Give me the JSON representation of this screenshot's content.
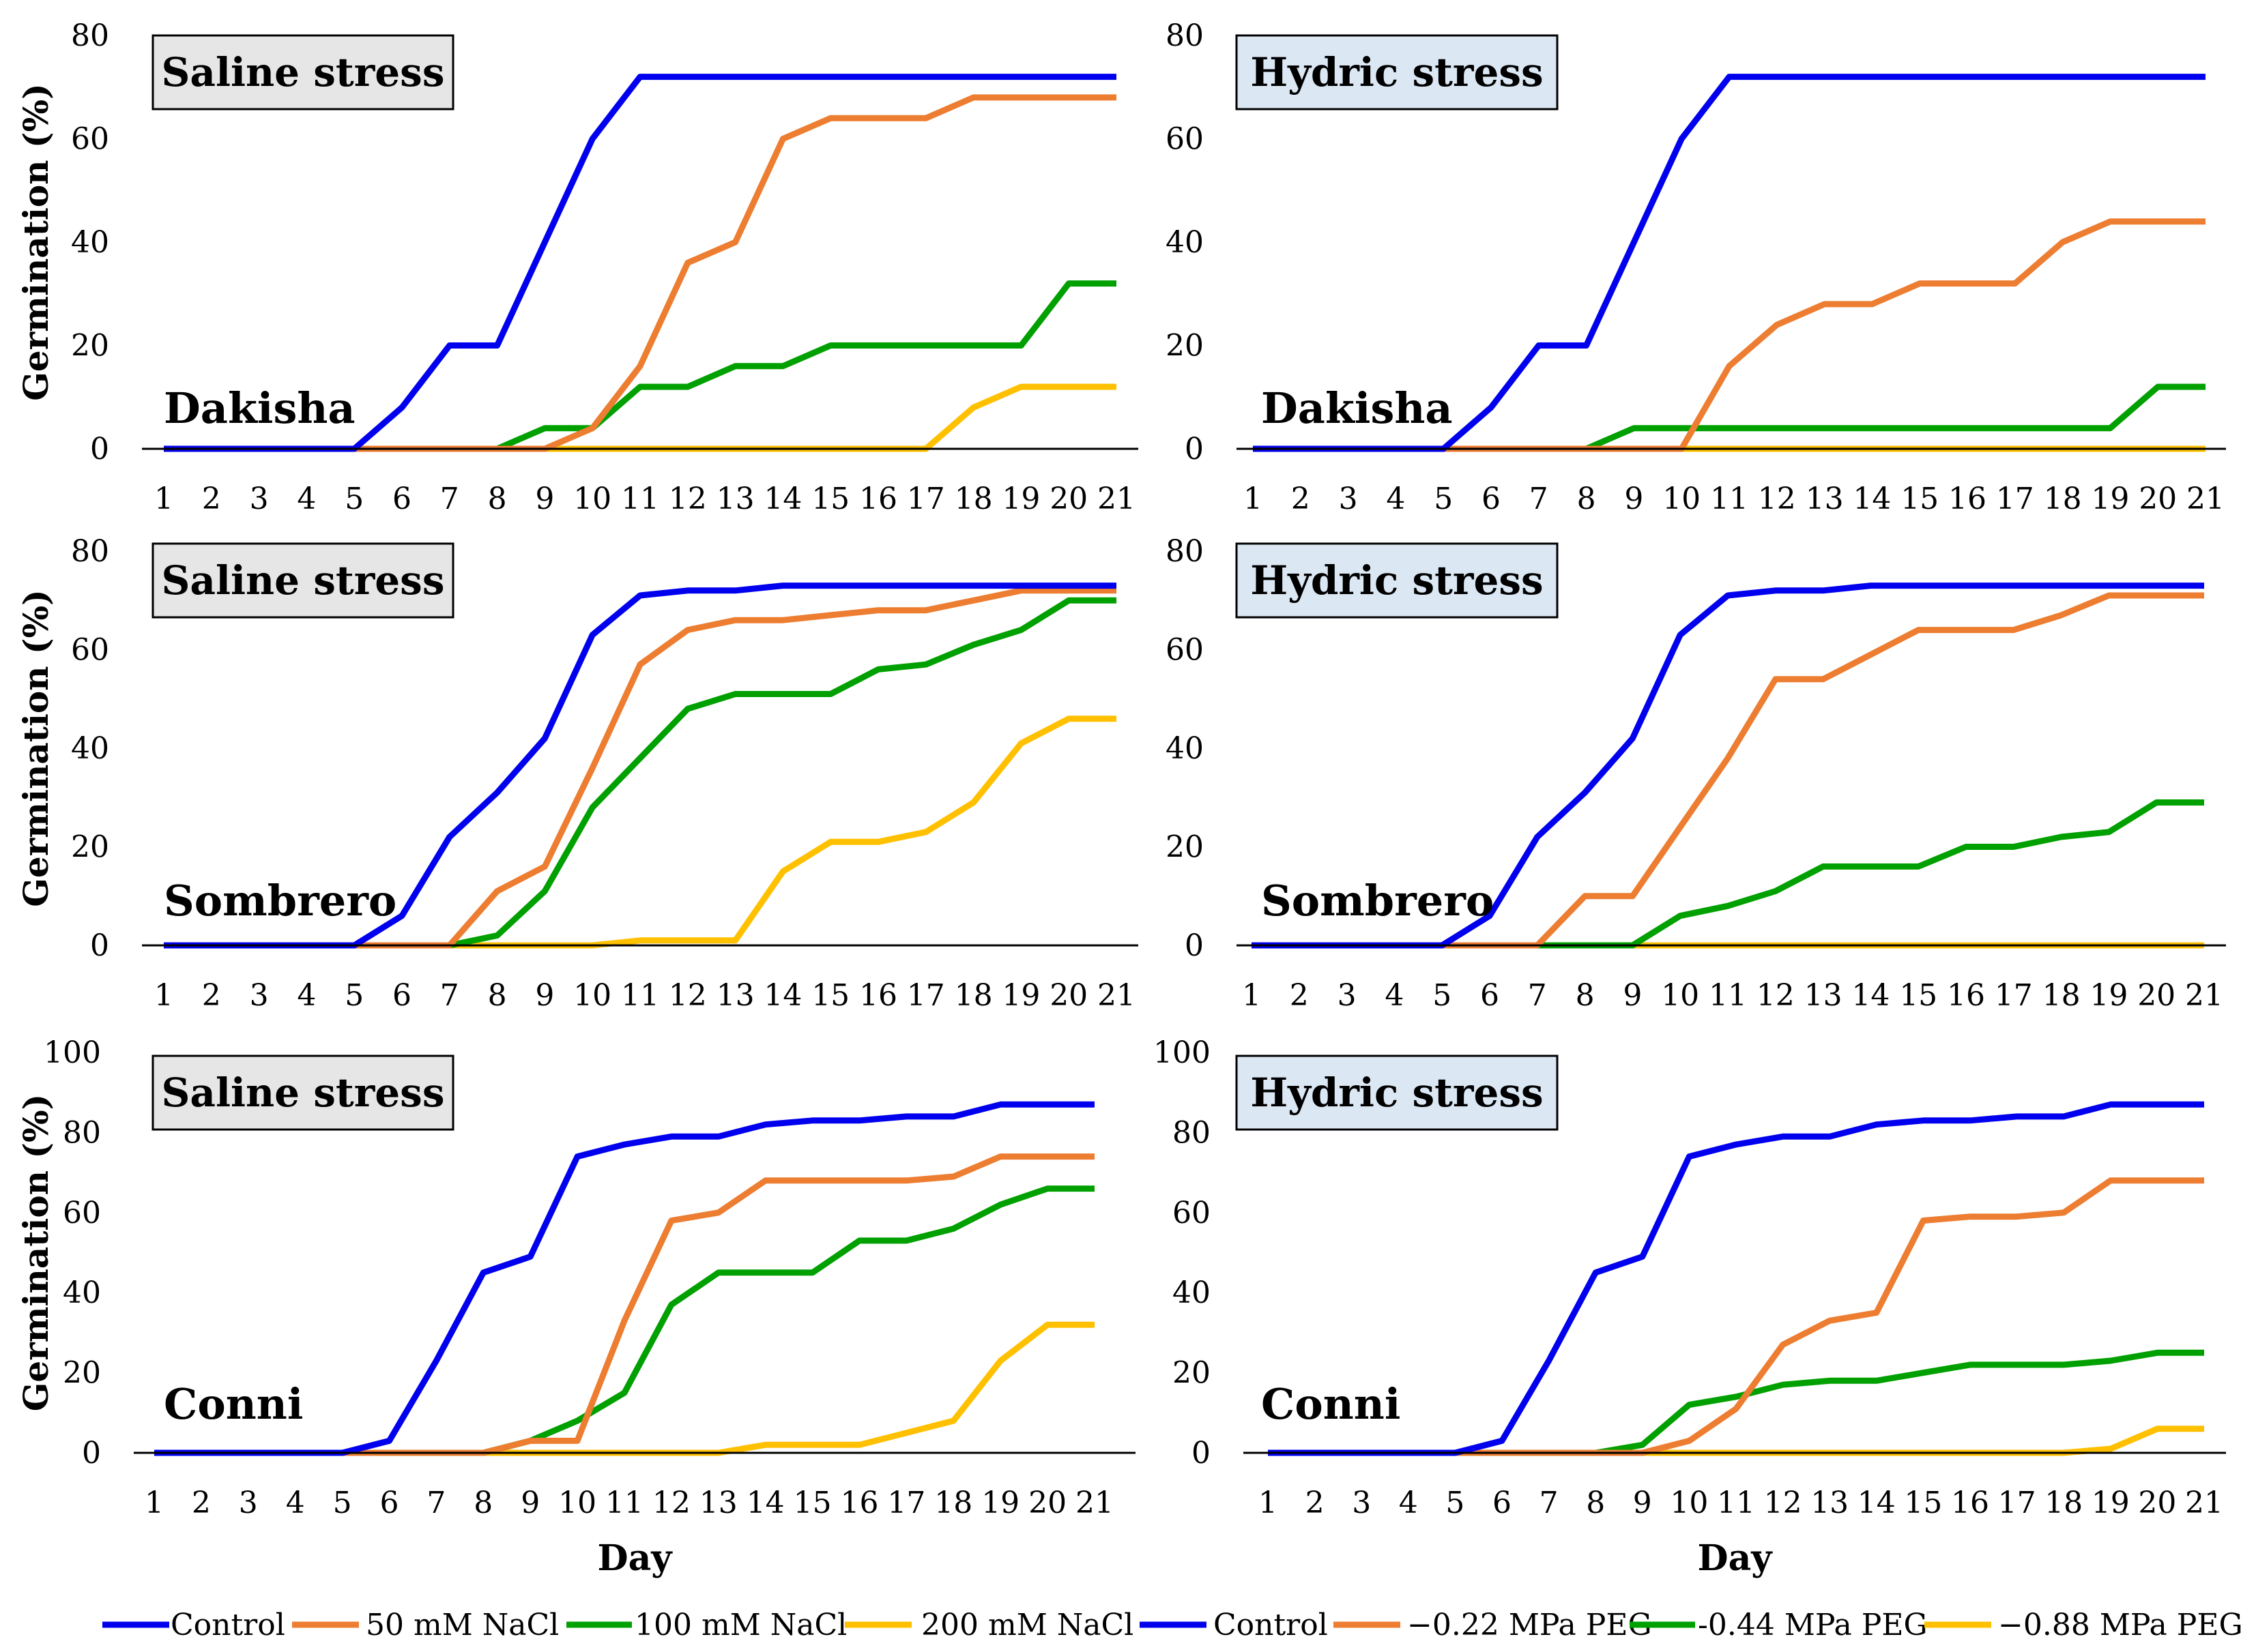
{
  "chart_data": [
    {
      "type": "line",
      "panel": "top-left",
      "title": "Saline stress",
      "cultivar": "Dakisha",
      "xlabel": "",
      "ylabel": "Germination (%)",
      "ylim": [
        0,
        80
      ],
      "yticks": [
        "0",
        "20",
        "40",
        "60",
        "80"
      ],
      "x": [
        "1",
        "2",
        "3",
        "4",
        "5",
        "6",
        "7",
        "8",
        "9",
        "10",
        "11",
        "12",
        "13",
        "14",
        "15",
        "16",
        "17",
        "18",
        "19",
        "20",
        "21"
      ],
      "series": [
        {
          "name": "Control",
          "color": "#0000ee",
          "values": [
            0,
            0,
            0,
            0,
            0,
            8,
            20,
            20,
            40,
            60,
            72,
            72,
            72,
            72,
            72,
            72,
            72,
            72,
            72,
            72,
            72
          ]
        },
        {
          "name": "50 mM NaCl",
          "color": "#ed7d31",
          "values": [
            0,
            0,
            0,
            0,
            0,
            0,
            0,
            0,
            0,
            4,
            16,
            36,
            40,
            60,
            64,
            64,
            64,
            68,
            68,
            68,
            68
          ]
        },
        {
          "name": "100 mM NaCl",
          "color": "#00a000",
          "values": [
            0,
            0,
            0,
            0,
            0,
            0,
            0,
            0,
            4,
            4,
            12,
            12,
            16,
            16,
            20,
            20,
            20,
            20,
            20,
            32,
            32
          ]
        },
        {
          "name": "200 mM NaCl",
          "color": "#ffc000",
          "values": [
            0,
            0,
            0,
            0,
            0,
            0,
            0,
            0,
            0,
            0,
            0,
            0,
            0,
            0,
            0,
            0,
            0,
            8,
            12,
            12,
            12
          ]
        }
      ]
    },
    {
      "type": "line",
      "panel": "top-right",
      "title": "Hydric stress",
      "cultivar": "Dakisha",
      "xlabel": "",
      "ylabel": "",
      "ylim": [
        0,
        80
      ],
      "yticks": [
        "0",
        "20",
        "40",
        "60",
        "80"
      ],
      "x": [
        "1",
        "2",
        "3",
        "4",
        "5",
        "6",
        "7",
        "8",
        "9",
        "10",
        "11",
        "12",
        "13",
        "14",
        "15",
        "16",
        "17",
        "18",
        "19",
        "20",
        "21"
      ],
      "series": [
        {
          "name": "Control",
          "color": "#0000ee",
          "values": [
            0,
            0,
            0,
            0,
            0,
            8,
            20,
            20,
            40,
            60,
            72,
            72,
            72,
            72,
            72,
            72,
            72,
            72,
            72,
            72,
            72
          ]
        },
        {
          "name": "−0.22 MPa PEG",
          "color": "#ed7d31",
          "values": [
            0,
            0,
            0,
            0,
            0,
            0,
            0,
            0,
            0,
            0,
            16,
            24,
            28,
            28,
            32,
            32,
            32,
            40,
            44,
            44,
            44
          ]
        },
        {
          "name": "-0.44 MPa PEG",
          "color": "#00a000",
          "values": [
            0,
            0,
            0,
            0,
            0,
            0,
            0,
            0,
            4,
            4,
            4,
            4,
            4,
            4,
            4,
            4,
            4,
            4,
            4,
            12,
            12
          ]
        },
        {
          "name": "−0.88 MPa PEG",
          "color": "#ffc000",
          "values": [
            0,
            0,
            0,
            0,
            0,
            0,
            0,
            0,
            0,
            0,
            0,
            0,
            0,
            0,
            0,
            0,
            0,
            0,
            0,
            0,
            0
          ]
        }
      ]
    },
    {
      "type": "line",
      "panel": "middle-left",
      "title": "Saline stress",
      "cultivar": "Sombrero",
      "xlabel": "",
      "ylabel": "Germination (%)",
      "ylim": [
        0,
        80
      ],
      "yticks": [
        "0",
        "20",
        "40",
        "60",
        "80"
      ],
      "x": [
        "1",
        "2",
        "3",
        "4",
        "5",
        "6",
        "7",
        "8",
        "9",
        "10",
        "11",
        "12",
        "13",
        "14",
        "15",
        "16",
        "17",
        "18",
        "19",
        "20",
        "21"
      ],
      "series": [
        {
          "name": "Control",
          "color": "#0000ee",
          "values": [
            0,
            0,
            0,
            0,
            0,
            6,
            22,
            31,
            42,
            63,
            71,
            72,
            72,
            73,
            73,
            73,
            73,
            73,
            73,
            73,
            73
          ]
        },
        {
          "name": "50 mM NaCl",
          "color": "#ed7d31",
          "values": [
            0,
            0,
            0,
            0,
            0,
            0,
            0,
            11,
            16,
            36,
            57,
            64,
            66,
            66,
            67,
            68,
            68,
            70,
            72,
            72,
            72
          ]
        },
        {
          "name": "100 mM NaCl",
          "color": "#00a000",
          "values": [
            0,
            0,
            0,
            0,
            0,
            0,
            0,
            2,
            11,
            28,
            38,
            48,
            51,
            51,
            51,
            56,
            57,
            61,
            64,
            70,
            70
          ]
        },
        {
          "name": "200 mM NaCl",
          "color": "#ffc000",
          "values": [
            0,
            0,
            0,
            0,
            0,
            0,
            0,
            0,
            0,
            0,
            1,
            1,
            1,
            15,
            21,
            21,
            23,
            29,
            41,
            46,
            46
          ]
        }
      ]
    },
    {
      "type": "line",
      "panel": "middle-right",
      "title": "Hydric stress",
      "cultivar": "Sombrero",
      "xlabel": "",
      "ylabel": "",
      "ylim": [
        0,
        80
      ],
      "yticks": [
        "0",
        "20",
        "40",
        "60",
        "80"
      ],
      "x": [
        "1",
        "2",
        "3",
        "4",
        "5",
        "6",
        "7",
        "8",
        "9",
        "10",
        "11",
        "12",
        "13",
        "14",
        "15",
        "16",
        "17",
        "18",
        "19",
        "20",
        "21"
      ],
      "series": [
        {
          "name": "Control",
          "color": "#0000ee",
          "values": [
            0,
            0,
            0,
            0,
            0,
            6,
            22,
            31,
            42,
            63,
            71,
            72,
            72,
            73,
            73,
            73,
            73,
            73,
            73,
            73,
            73
          ]
        },
        {
          "name": "−0.22 MPa PEG",
          "color": "#ed7d31",
          "values": [
            0,
            0,
            0,
            0,
            0,
            0,
            0,
            10,
            10,
            24,
            38,
            54,
            54,
            59,
            64,
            64,
            64,
            67,
            71,
            71,
            71
          ]
        },
        {
          "name": "-0.44 MPa PEG",
          "color": "#00a000",
          "values": [
            0,
            0,
            0,
            0,
            0,
            0,
            0,
            0,
            0,
            6,
            8,
            11,
            16,
            16,
            16,
            20,
            20,
            22,
            23,
            29,
            29
          ]
        },
        {
          "name": "−0.88 MPa PEG",
          "color": "#ffc000",
          "values": [
            0,
            0,
            0,
            0,
            0,
            0,
            0,
            0,
            0,
            0,
            0,
            0,
            0,
            0,
            0,
            0,
            0,
            0,
            0,
            0,
            0
          ]
        }
      ]
    },
    {
      "type": "line",
      "panel": "bottom-left",
      "title": "Saline stress",
      "cultivar": "Conni",
      "xlabel": "Day",
      "ylabel": "Germination (%)",
      "ylim": [
        0,
        100
      ],
      "yticks": [
        "0",
        "20",
        "40",
        "60",
        "80",
        "100"
      ],
      "x": [
        "1",
        "2",
        "3",
        "4",
        "5",
        "6",
        "7",
        "8",
        "9",
        "10",
        "11",
        "12",
        "13",
        "14",
        "15",
        "16",
        "17",
        "18",
        "19",
        "20",
        "21"
      ],
      "series": [
        {
          "name": "Control",
          "color": "#0000ee",
          "values": [
            0,
            0,
            0,
            0,
            0,
            3,
            23,
            45,
            49,
            74,
            77,
            79,
            79,
            82,
            83,
            83,
            84,
            84,
            87,
            87,
            87
          ]
        },
        {
          "name": "50 mM NaCl",
          "color": "#ed7d31",
          "values": [
            0,
            0,
            0,
            0,
            0,
            0,
            0,
            0,
            3,
            3,
            33,
            58,
            60,
            68,
            68,
            68,
            68,
            69,
            74,
            74,
            74
          ]
        },
        {
          "name": "100 mM NaCl",
          "color": "#00a000",
          "values": [
            0,
            0,
            0,
            0,
            0,
            0,
            0,
            0,
            3,
            8,
            15,
            37,
            45,
            45,
            45,
            53,
            53,
            56,
            62,
            66,
            66
          ]
        },
        {
          "name": "200 mM NaCl",
          "color": "#ffc000",
          "values": [
            0,
            0,
            0,
            0,
            0,
            0,
            0,
            0,
            0,
            0,
            0,
            0,
            0,
            2,
            2,
            2,
            5,
            8,
            23,
            32,
            32
          ]
        }
      ]
    },
    {
      "type": "line",
      "panel": "bottom-right",
      "title": "Hydric stress",
      "cultivar": "Conni",
      "xlabel": "Day",
      "ylabel": "",
      "ylim": [
        0,
        100
      ],
      "yticks": [
        "0",
        "20",
        "40",
        "60",
        "80",
        "100"
      ],
      "x": [
        "1",
        "2",
        "3",
        "4",
        "5",
        "6",
        "7",
        "8",
        "9",
        "10",
        "11",
        "12",
        "13",
        "14",
        "15",
        "16",
        "17",
        "18",
        "19",
        "20",
        "21"
      ],
      "series": [
        {
          "name": "Control",
          "color": "#0000ee",
          "values": [
            0,
            0,
            0,
            0,
            0,
            3,
            23,
            45,
            49,
            74,
            77,
            79,
            79,
            82,
            83,
            83,
            84,
            84,
            87,
            87,
            87
          ]
        },
        {
          "name": "−0.22 MPa PEG",
          "color": "#ed7d31",
          "values": [
            0,
            0,
            0,
            0,
            0,
            0,
            0,
            0,
            0,
            3,
            11,
            27,
            33,
            35,
            58,
            59,
            59,
            60,
            68,
            68,
            68
          ]
        },
        {
          "name": "-0.44 MPa PEG",
          "color": "#00a000",
          "values": [
            0,
            0,
            0,
            0,
            0,
            0,
            0,
            0,
            2,
            12,
            14,
            17,
            18,
            18,
            20,
            22,
            22,
            22,
            23,
            25,
            25
          ]
        },
        {
          "name": "−0.88 MPa PEG",
          "color": "#ffc000",
          "values": [
            0,
            0,
            0,
            0,
            0,
            0,
            0,
            0,
            0,
            0,
            0,
            0,
            0,
            0,
            0,
            0,
            0,
            0,
            1,
            6,
            6
          ]
        }
      ]
    }
  ],
  "legend": {
    "placement": "bottom",
    "items": [
      {
        "label": "Control",
        "color": "#0000ee"
      },
      {
        "label": "50 mM NaCl",
        "color": "#ed7d31"
      },
      {
        "label": "100 mM NaCl",
        "color": "#00a000"
      },
      {
        "label": "200 mM NaCl",
        "color": "#ffc000"
      },
      {
        "label": "Control",
        "color": "#0000ee"
      },
      {
        "label": "−0.22 MPa PEG",
        "color": "#ed7d31"
      },
      {
        "label": "-0.44 MPa PEG",
        "color": "#00a000"
      },
      {
        "label": "−0.88 MPa PEG",
        "color": "#ffc000"
      }
    ]
  }
}
